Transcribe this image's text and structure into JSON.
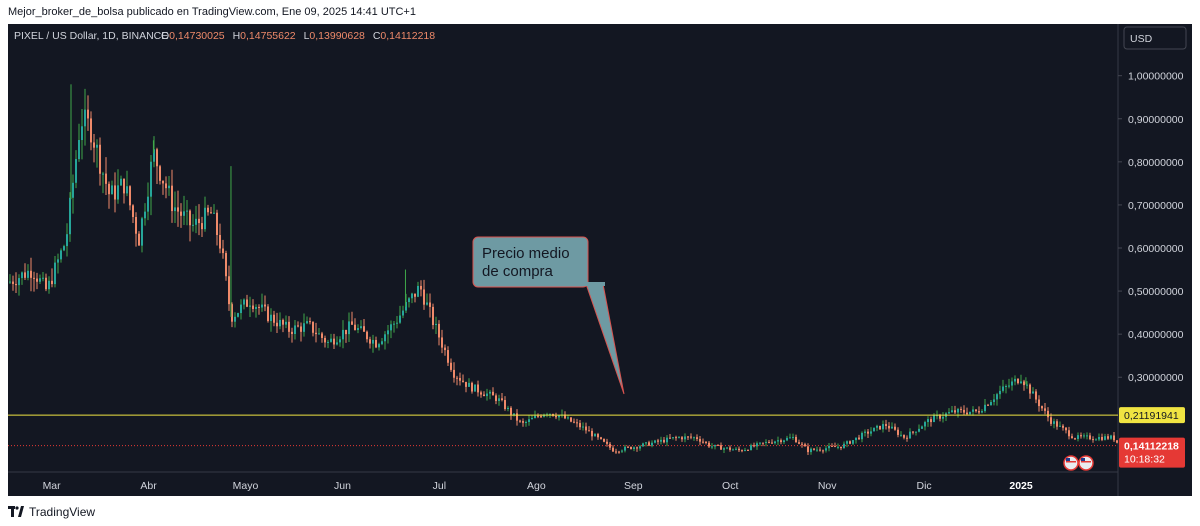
{
  "header": {
    "published_line": "Mejor_broker_de_bolsa publicado en TradingView.com, Ene 09, 2025 14:41 UTC+1"
  },
  "legend": {
    "symbol": "PIXEL / US Dollar, 1D, BINANCE",
    "o_label": "O",
    "o_value": "0,14730025",
    "h_label": "H",
    "h_value": "0,14755622",
    "l_label": "L",
    "l_value": "0,13990628",
    "c_label": "C",
    "c_value": "0,14112218"
  },
  "currency_button": "USD",
  "annotation": {
    "line1": "Precio medio",
    "line2": "de compra"
  },
  "footer": {
    "brand": "TradingView"
  },
  "colors": {
    "background": "#131722",
    "up": "#26a69a",
    "up_wick": "#3fa74a",
    "down": "#ef8a6a",
    "level_line": "#f0e442",
    "last_price": "#e53935",
    "callout_fill": "#6e9aa3",
    "callout_border": "#d9534f"
  },
  "chart_data": {
    "type": "candlestick",
    "y_axis": {
      "ticks": [
        {
          "value": 1.0,
          "label": "1,00000000"
        },
        {
          "value": 0.9,
          "label": "0,90000000"
        },
        {
          "value": 0.8,
          "label": "0,80000000"
        },
        {
          "value": 0.7,
          "label": "0,70000000"
        },
        {
          "value": 0.6,
          "label": "0,60000000"
        },
        {
          "value": 0.5,
          "label": "0,50000000"
        },
        {
          "value": 0.4,
          "label": "0,40000000"
        },
        {
          "value": 0.3,
          "label": "0,30000000"
        }
      ],
      "range": [
        0.08,
        1.12
      ]
    },
    "x_axis": {
      "labels": [
        "Mar",
        "Abr",
        "Mayo",
        "Jun",
        "Jul",
        "Ago",
        "Sep",
        "Oct",
        "Nov",
        "Dic",
        "2025"
      ],
      "label_months": [
        2.3,
        3.3,
        4.3,
        5.3,
        6.3,
        7.3,
        8.3,
        9.3,
        10.3,
        11.3,
        12.3
      ],
      "range_months": [
        1.85,
        13.3
      ]
    },
    "horizontal_level": {
      "value": 0.21191941,
      "label": "0,21191941"
    },
    "last_price": {
      "value": 0.14112218,
      "label": "0,14112218",
      "countdown": "10:18:32"
    },
    "anchors": [
      [
        1.85,
        0.52
      ],
      [
        2.1,
        0.55
      ],
      [
        2.25,
        0.5
      ],
      [
        2.45,
        0.62
      ],
      [
        2.6,
        0.9
      ],
      [
        2.7,
        0.88
      ],
      [
        2.9,
        0.72
      ],
      [
        3.05,
        0.75
      ],
      [
        3.2,
        0.62
      ],
      [
        3.35,
        0.82
      ],
      [
        3.55,
        0.7
      ],
      [
        3.75,
        0.65
      ],
      [
        3.95,
        0.68
      ],
      [
        4.05,
        0.6
      ],
      [
        4.15,
        0.44
      ],
      [
        4.35,
        0.48
      ],
      [
        4.55,
        0.44
      ],
      [
        4.75,
        0.41
      ],
      [
        4.95,
        0.42
      ],
      [
        5.15,
        0.38
      ],
      [
        5.4,
        0.42
      ],
      [
        5.65,
        0.38
      ],
      [
        5.85,
        0.43
      ],
      [
        6.0,
        0.48
      ],
      [
        6.1,
        0.51
      ],
      [
        6.25,
        0.42
      ],
      [
        6.45,
        0.31
      ],
      [
        6.6,
        0.28
      ],
      [
        6.9,
        0.25
      ],
      [
        7.15,
        0.19
      ],
      [
        7.4,
        0.22
      ],
      [
        7.55,
        0.21
      ],
      [
        7.8,
        0.18
      ],
      [
        8.1,
        0.13
      ],
      [
        8.35,
        0.14
      ],
      [
        8.75,
        0.16
      ],
      [
        8.95,
        0.16
      ],
      [
        9.1,
        0.14
      ],
      [
        9.4,
        0.13
      ],
      [
        9.7,
        0.15
      ],
      [
        9.95,
        0.16
      ],
      [
        10.1,
        0.13
      ],
      [
        10.45,
        0.14
      ],
      [
        10.7,
        0.17
      ],
      [
        10.9,
        0.19
      ],
      [
        11.1,
        0.16
      ],
      [
        11.35,
        0.2
      ],
      [
        11.6,
        0.22
      ],
      [
        11.85,
        0.22
      ],
      [
        12.1,
        0.27
      ],
      [
        12.3,
        0.3
      ],
      [
        12.45,
        0.25
      ],
      [
        12.6,
        0.2
      ],
      [
        12.85,
        0.16
      ],
      [
        13.05,
        0.16
      ],
      [
        13.25,
        0.16
      ],
      [
        13.32,
        0.141
      ]
    ]
  }
}
